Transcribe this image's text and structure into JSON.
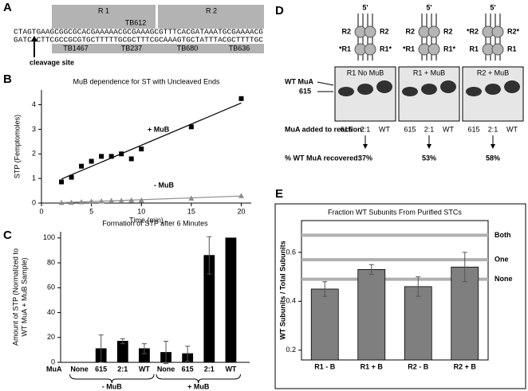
{
  "panel_labels": [
    "A",
    "B",
    "C",
    "D",
    "E"
  ],
  "panel_a": {
    "regions": [
      "R 1",
      "R 2"
    ],
    "top_oligos": [
      "TB612"
    ],
    "bottom_oligos": [
      "TB1467",
      "TB237",
      "TB680",
      "TB636"
    ],
    "top_strand": "CTAGTGAAGCGGCGCACGAAAAACGCGAAAGCGTTTCACGATAAATGCGAAAACG",
    "bottom_strand": "GATCACTTCGCCGCGTGCTTTTTGCGCTTTCGCAAAGTGCTATTTACGCTTTTGC",
    "cleavage_label": "cleavage site"
  },
  "panel_d": {
    "five_prime": "5'",
    "complexes": [
      {
        "top": [
          "R2",
          "R2"
        ],
        "bottom": [
          "*R1",
          "R1*"
        ]
      },
      {
        "top": [
          "R2",
          "R2"
        ],
        "bottom": [
          "*R1",
          "R1*"
        ]
      },
      {
        "top": [
          "*R2",
          "R2*"
        ],
        "bottom": [
          "R1",
          "R1"
        ]
      }
    ],
    "gels": [
      {
        "title": "R1 No MuB",
        "lanes": [
          "615",
          "2:1",
          "WT"
        ],
        "recovered": "37%"
      },
      {
        "title": "R1 + MuB",
        "lanes": [
          "615",
          "2:1",
          "WT"
        ],
        "recovered": "53%"
      },
      {
        "title": "R2 + MuB",
        "lanes": [
          "615",
          "2:1",
          "WT"
        ],
        "recovered": "58%"
      }
    ],
    "band_labels": [
      "WT MuA",
      "615"
    ],
    "added_label": "MuA added to reaction:",
    "recovered_label": "% WT MuA recovered:"
  },
  "chart_data": [
    {
      "type": "scatter",
      "title": "MuB dependence for ST with Uncleaved Ends",
      "x_label": "Time (min)",
      "y_label": "STP (Femptomoles)",
      "xlim": [
        0,
        21
      ],
      "xticks": [
        0,
        5,
        10,
        15,
        20
      ],
      "ylim": [
        0,
        4.6
      ],
      "yticks": [
        0,
        1,
        2,
        3,
        4
      ],
      "trendline": true,
      "series": [
        {
          "name": "+ MuB",
          "color": "#000000",
          "marker": "square",
          "x": [
            2,
            3,
            4,
            5,
            6,
            7,
            8,
            9,
            10,
            15,
            20
          ],
          "values": [
            0.86,
            1.05,
            1.5,
            1.7,
            1.9,
            1.9,
            2.0,
            1.8,
            2.2,
            3.1,
            4.25
          ]
        },
        {
          "name": "- MuB",
          "color": "#8c8c8c",
          "marker": "triangle",
          "x": [
            2,
            3,
            4,
            5,
            6,
            7,
            8,
            9,
            10,
            15,
            20
          ],
          "values": [
            0.02,
            0.03,
            0.05,
            0.07,
            0.08,
            0.1,
            0.1,
            0.12,
            0.12,
            0.2,
            0.3
          ]
        }
      ]
    },
    {
      "type": "bar",
      "title": "Formation of STP after 6 Minutes",
      "y_label": [
        "Amount of STP (Normalized to",
        "WT MuA + MuB Sample)"
      ],
      "x_label": "MuA",
      "categories": [
        "None",
        "615",
        "2:1",
        "WT",
        "None",
        "615",
        "2:1",
        "WT"
      ],
      "values": [
        0,
        11,
        17,
        11,
        8,
        7,
        86,
        100
      ],
      "errors": [
        0,
        11,
        2,
        4,
        9,
        6,
        15,
        0
      ],
      "groups": [
        "- MuB",
        "+ MuB"
      ],
      "color": "#000000",
      "ylim": [
        0,
        105
      ],
      "yticks": [
        0,
        20,
        40,
        60,
        80,
        100
      ]
    },
    {
      "type": "bar",
      "title": "Fraction WT Subunits From Purified STCs",
      "y_label": [
        "WT Subunits / Total Subunits"
      ],
      "categories": [
        "R1 - B",
        "R1 + B",
        "R2 - B",
        "R2 + B"
      ],
      "values": [
        0.45,
        0.53,
        0.46,
        0.54
      ],
      "errors": [
        0.03,
        0.02,
        0.04,
        0.06
      ],
      "color": "#7f7f7f",
      "frame": true,
      "ylim": [
        0.16,
        0.73
      ],
      "yticks": [
        0.2,
        0.4,
        0.6
      ],
      "reference_lines": [
        {
          "label": "Both",
          "value": 0.67
        },
        {
          "label": "One",
          "value": 0.57
        },
        {
          "label": "None",
          "value": 0.49
        }
      ]
    }
  ]
}
